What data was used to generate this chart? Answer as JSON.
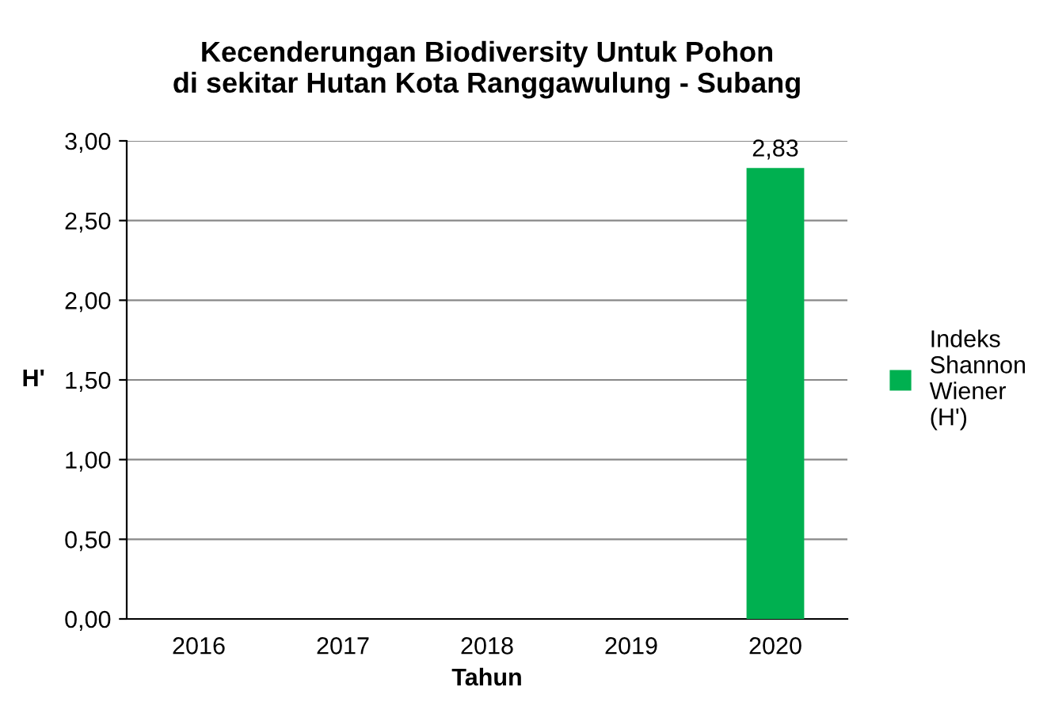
{
  "chart_data": {
    "type": "bar",
    "title": "Kecenderungan Biodiversity Untuk Pohon\ndi sekitar Hutan Kota Ranggawulung - Subang",
    "xlabel": "Tahun",
    "ylabel": "H'",
    "categories": [
      "2016",
      "2017",
      "2018",
      "2019",
      "2020"
    ],
    "series": [
      {
        "name": "Indeks Shannon Wiener (H')",
        "color": "#00b050",
        "values": [
          null,
          null,
          null,
          null,
          2.83
        ],
        "value_labels": [
          null,
          null,
          null,
          null,
          "2,83"
        ]
      }
    ],
    "ylim": [
      0,
      3
    ],
    "yticks": [
      {
        "value": 0,
        "label": "0,00"
      },
      {
        "value": 0.5,
        "label": "0,50"
      },
      {
        "value": 1,
        "label": "1,00"
      },
      {
        "value": 1.5,
        "label": "1,50"
      },
      {
        "value": 2,
        "label": "2,00"
      },
      {
        "value": 2.5,
        "label": "2,50"
      },
      {
        "value": 3,
        "label": "3,00"
      }
    ],
    "grid": "y",
    "legend": "right"
  }
}
